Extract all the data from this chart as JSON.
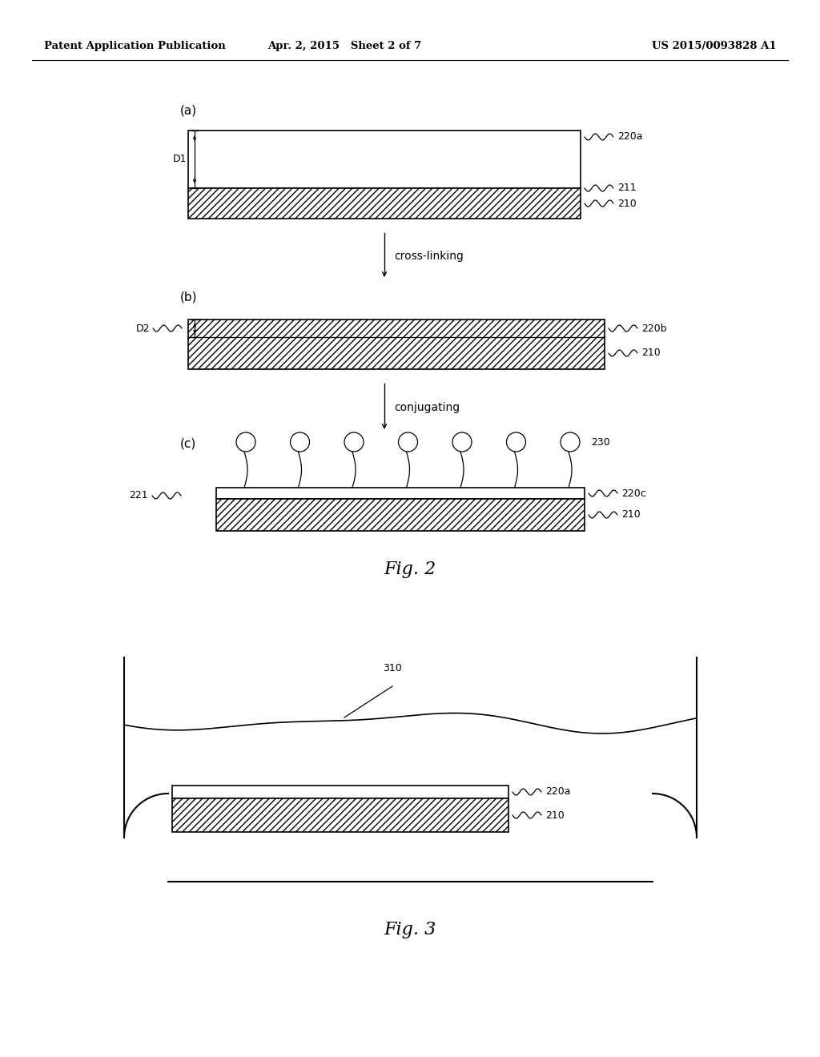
{
  "bg_color": "#ffffff",
  "header_left": "Patent Application Publication",
  "header_mid": "Apr. 2, 2015   Sheet 2 of 7",
  "header_right": "US 2015/0093828 A1",
  "fig2_label": "Fig. 2",
  "fig3_label": "Fig. 3",
  "section_a_label": "(a)",
  "section_b_label": "(b)",
  "section_c_label": "(c)",
  "crosslink_text": "cross-linking",
  "conjugate_text": "conjugating",
  "labels_a": [
    "220a",
    "211",
    "210"
  ],
  "labels_b": [
    "220b",
    "210"
  ],
  "labels_c": [
    "221",
    "230",
    "220c",
    "210"
  ],
  "label_310": "310",
  "labels_fig3": [
    "220a",
    "210"
  ],
  "d1_label": "D1",
  "d2_label": "D2",
  "line_color": "#000000"
}
